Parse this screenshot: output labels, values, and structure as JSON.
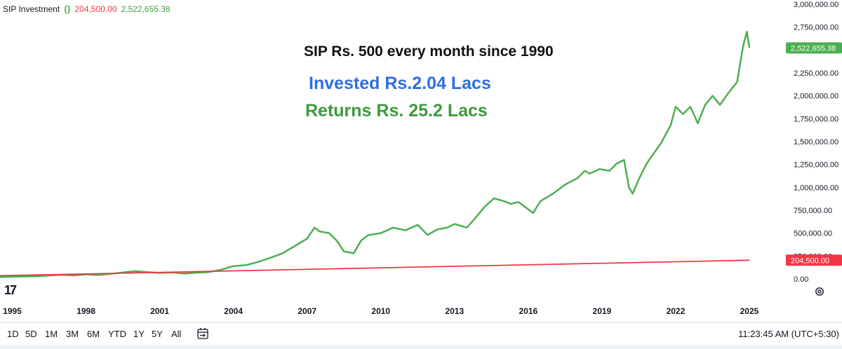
{
  "legend": {
    "name": "SIP Investment",
    "icon": "curly-braces-icon",
    "invested_value": "204,500.00",
    "current_value": "2,522,655.38"
  },
  "annotations": {
    "title": "SIP Rs. 500 every month since 1990",
    "invested": "Invested Rs.2.04 Lacs",
    "returns": "Returns Rs. 25.2 Lacs"
  },
  "toolbar": {
    "ranges": [
      "1D",
      "5D",
      "1M",
      "3M",
      "6M",
      "YTD",
      "1Y",
      "5Y",
      "All"
    ],
    "calendar_icon": "calendar-range-icon",
    "clock": "11:23:45 AM (UTC+5:30)",
    "settings_icon": "gear-icon",
    "logo": "17"
  },
  "colors": {
    "returns_line": "#4caf50",
    "invested_line": "#f23645",
    "returns_label_bg": "#4caf50",
    "invested_label_bg": "#f23645",
    "invested_text": "#2f6fe0",
    "returns_text": "#3f9a3c"
  },
  "chart_data": {
    "type": "line",
    "x_axis_ticks": [
      "1995",
      "1998",
      "2001",
      "2004",
      "2007",
      "2010",
      "2013",
      "2016",
      "2019",
      "2022",
      "2025"
    ],
    "y_axis_ticks": [
      "0.00",
      "250,000.00",
      "500,000.00",
      "750,000.00",
      "1,000,000.00",
      "1,250,000.00",
      "1,500,000.00",
      "1,750,000.00",
      "2,000,000.00",
      "2,250,000.00",
      "2,750,000.00",
      "3,000,000.00"
    ],
    "ylim": [
      0,
      3000000
    ],
    "xlim": [
      1994.5,
      2026.2
    ],
    "grid": false,
    "last_value_labels": [
      "2,522,655.38",
      "204,500.00"
    ],
    "series": [
      {
        "name": "",
        "color": "#4caf50",
        "x": [
          1994.5,
          1995,
          1996,
          1997,
          1997.5,
          1998,
          1998.5,
          1999,
          1999.5,
          2000,
          2000.5,
          2001,
          2001.5,
          2002,
          2002.5,
          2003,
          2003.5,
          2004,
          2004.5,
          2005,
          2005.5,
          2006,
          2006.5,
          2007,
          2007.3,
          2007.5,
          2007.9,
          2008.2,
          2008.5,
          2008.9,
          2009.2,
          2009.5,
          2010,
          2010.5,
          2011,
          2011.5,
          2011.9,
          2012.3,
          2012.7,
          2013,
          2013.5,
          2013.8,
          2014.2,
          2014.6,
          2015,
          2015.3,
          2015.6,
          2016,
          2016.2,
          2016.5,
          2017,
          2017.5,
          2018,
          2018.3,
          2018.5,
          2018.9,
          2019.3,
          2019.6,
          2019.9,
          2020.1,
          2020.25,
          2020.5,
          2020.8,
          2021,
          2021.4,
          2021.8,
          2022,
          2022.3,
          2022.6,
          2022.9,
          2023.2,
          2023.5,
          2023.8,
          2024.2,
          2024.5,
          2024.75,
          2024.9,
          2025.0
        ],
        "y": [
          20000,
          25000,
          30000,
          45000,
          38000,
          50000,
          42000,
          55000,
          70000,
          85000,
          75000,
          65000,
          70000,
          58000,
          68000,
          75000,
          100000,
          140000,
          150000,
          185000,
          230000,
          280000,
          360000,
          440000,
          560000,
          520000,
          500000,
          420000,
          300000,
          280000,
          420000,
          480000,
          500000,
          560000,
          530000,
          590000,
          480000,
          540000,
          560000,
          600000,
          560000,
          650000,
          780000,
          880000,
          850000,
          820000,
          840000,
          760000,
          720000,
          850000,
          930000,
          1030000,
          1100000,
          1180000,
          1150000,
          1200000,
          1180000,
          1260000,
          1300000,
          1000000,
          930000,
          1090000,
          1250000,
          1330000,
          1480000,
          1680000,
          1880000,
          1800000,
          1880000,
          1700000,
          1900000,
          2000000,
          1900000,
          2050000,
          2150000,
          2550000,
          2700000,
          2522655.38
        ]
      },
      {
        "name": "",
        "color": "#f23645",
        "x": [
          1994.5,
          2025.0
        ],
        "y": [
          35000,
          204500
        ]
      }
    ]
  }
}
